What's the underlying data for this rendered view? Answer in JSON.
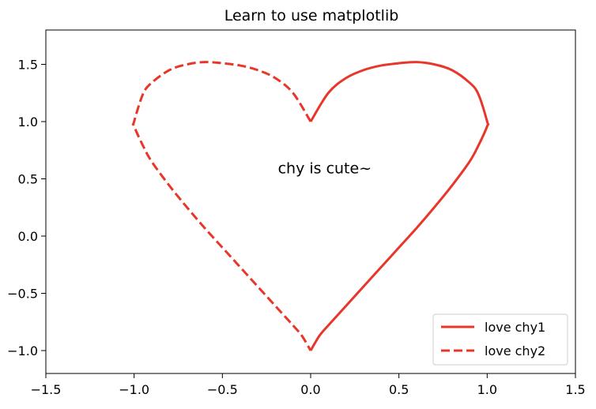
{
  "chart_data": {
    "type": "line",
    "title": "Learn to use matplotlib",
    "xlabel": "",
    "ylabel": "",
    "xlim": [
      -1.5,
      1.5
    ],
    "ylim": [
      -1.2,
      1.8
    ],
    "x_ticks": [
      -1.5,
      -1.0,
      -0.5,
      0.0,
      0.5,
      1.0,
      1.5
    ],
    "x_tick_labels": [
      "−1.5",
      "−1.0",
      "−0.5",
      "0.0",
      "0.5",
      "1.0",
      "1.5"
    ],
    "y_ticks": [
      -1.0,
      -0.5,
      0.0,
      0.5,
      1.0,
      1.5
    ],
    "y_tick_labels": [
      "−1.0",
      "−0.5",
      "0.0",
      "0.5",
      "1.0",
      "1.5"
    ],
    "grid": false,
    "legend_position": "lower-right",
    "annotation": {
      "text": "chy is cute~",
      "x": 0.08,
      "y": 0.55
    },
    "series": [
      {
        "name": "love chy1",
        "color": "#e8372a",
        "style": "solid",
        "x": [
          0.0,
          0.1,
          0.2,
          0.3,
          0.4,
          0.5,
          0.6,
          0.7,
          0.8,
          0.9,
          0.95,
          1.0,
          1.0,
          0.95,
          0.9,
          0.8,
          0.7,
          0.6,
          0.5,
          0.4,
          0.3,
          0.2,
          0.1,
          0.05,
          0.0
        ],
        "y": [
          1.0,
          1.25,
          1.38,
          1.45,
          1.49,
          1.51,
          1.52,
          1.5,
          1.45,
          1.34,
          1.24,
          1.0,
          0.96,
          0.79,
          0.65,
          0.44,
          0.25,
          0.07,
          -0.1,
          -0.27,
          -0.44,
          -0.61,
          -0.78,
          -0.87,
          -1.0
        ]
      },
      {
        "name": "love chy2",
        "color": "#e8372a",
        "style": "dashed",
        "x": [
          0.0,
          -0.1,
          -0.2,
          -0.3,
          -0.4,
          -0.5,
          -0.6,
          -0.7,
          -0.8,
          -0.9,
          -0.95,
          -1.0,
          -1.0,
          -0.95,
          -0.9,
          -0.8,
          -0.7,
          -0.6,
          -0.5,
          -0.4,
          -0.3,
          -0.2,
          -0.1,
          -0.05,
          0.0
        ],
        "y": [
          1.0,
          1.25,
          1.38,
          1.45,
          1.49,
          1.51,
          1.52,
          1.5,
          1.45,
          1.34,
          1.24,
          1.0,
          0.96,
          0.79,
          0.65,
          0.44,
          0.25,
          0.07,
          -0.1,
          -0.27,
          -0.44,
          -0.61,
          -0.78,
          -0.87,
          -1.0
        ]
      }
    ]
  }
}
